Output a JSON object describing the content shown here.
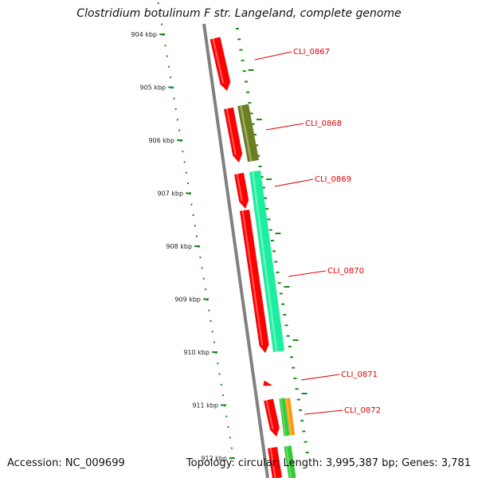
{
  "header": {
    "title": "Clostridium botulinum F str. Langeland, complete genome"
  },
  "footer": {
    "accession": "Accession: NC_009699",
    "summary": "Topology: circular; Length: 3,995,387 bp; Genes: 3,781"
  },
  "ruler": {
    "ticks": [
      "904 kbp",
      "905 kbp",
      "906 kbp",
      "907 kbp",
      "908 kbp",
      "909 kbp",
      "910 kbp",
      "911 kbp",
      "912 kbp"
    ]
  },
  "genes": [
    {
      "label": "CLI_0867",
      "color": "#ff0000"
    },
    {
      "label": "CLI_0868",
      "color": "#6b7f1e"
    },
    {
      "label": "CLI_0869",
      "color": "#1aef9f"
    },
    {
      "label": "CLI_0870",
      "color": "#ff0000"
    },
    {
      "label": "CLI_0871",
      "color": "#ff0000"
    },
    {
      "label": "CLI_0872",
      "color": "#ff9900"
    }
  ],
  "colors": {
    "backbone": "#808080",
    "ruler_ticks": "#1a8a1a",
    "gc_ticks": "#1a8a1a",
    "cds_forward": "#ff0000",
    "cds_olive": "#6b7f1e",
    "cds_teal": "#1aef9f",
    "cds_green": "#33cc33",
    "cds_orange": "#ff9900",
    "label_line": "#e00000"
  }
}
